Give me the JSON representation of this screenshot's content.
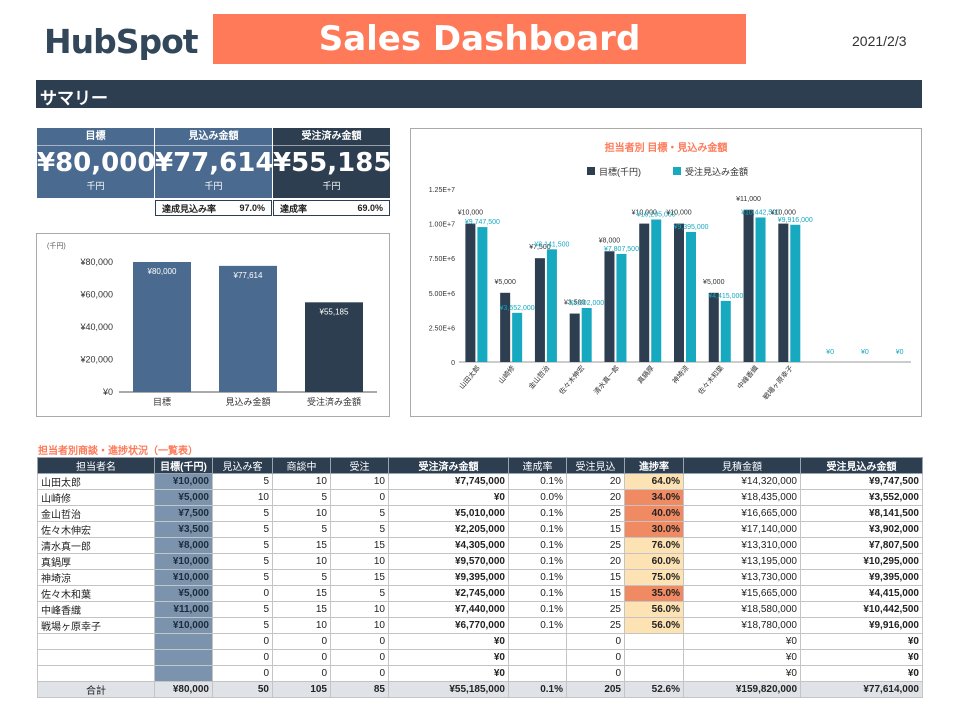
{
  "header": {
    "logo_text": "HubSpot",
    "title": "Sales Dashboard",
    "date": "2021/2/3"
  },
  "section": {
    "title": "サマリー"
  },
  "kpis": [
    {
      "label": "目標",
      "value": "¥80,000",
      "unit": "千円",
      "color": "#4a6a8f"
    },
    {
      "label": "見込み金額",
      "value": "¥77,614",
      "unit": "千円",
      "color": "#4a6a8f"
    },
    {
      "label": "受注済み金額",
      "value": "¥55,185",
      "unit": "千円",
      "color": "#2d3e50"
    }
  ],
  "kpi_sub": [
    {
      "label": "達成見込み率",
      "value": "97.0%"
    },
    {
      "label": "達成率",
      "value": "69.0%"
    }
  ],
  "colors": {
    "navy": "#2d3e50",
    "steel": "#4a6a8f",
    "teal": "#17a9c0",
    "orange": "#ff7a59",
    "progress_red": "#f08a62",
    "progress_light": "#fde2b3"
  },
  "chart_data": [
    {
      "type": "bar",
      "unit_label": "(千円)",
      "categories": [
        "目標",
        "見込み金額",
        "受注済み金額"
      ],
      "values": [
        80000,
        77614,
        55185
      ],
      "data_labels": [
        "¥80,000",
        "¥77,614",
        "¥55,185"
      ],
      "bar_colors": [
        "#4a6a8f",
        "#4a6a8f",
        "#2d3e50"
      ],
      "ylim": [
        0,
        80000
      ],
      "yticks": [
        0,
        20000,
        40000,
        60000,
        80000
      ],
      "ytick_labels": [
        "¥0",
        "¥20,000",
        "¥40,000",
        "¥60,000",
        "¥80,000"
      ],
      "grid": false
    },
    {
      "type": "bar",
      "title": "担当者別 目標・見込み金額",
      "legend_position": "top",
      "categories": [
        "山田太郎",
        "山崎修",
        "金山哲治",
        "佐々木伸宏",
        "清水真一郎",
        "真鍋厚",
        "神埼涼",
        "佐々木和葉",
        "中峰香織",
        "戦場ヶ原幸子",
        "",
        "",
        ""
      ],
      "series": [
        {
          "name": "目標(千円)",
          "color": "#2d3e50",
          "values": [
            10000000,
            5000000,
            7500000,
            3500000,
            8000000,
            10000000,
            10000000,
            5000000,
            11000000,
            10000000,
            0,
            0,
            0
          ],
          "labels": [
            "¥10,000",
            "¥5,000",
            "¥7,500",
            "¥3,500",
            "¥8,000",
            "¥10,000",
            "¥10,000",
            "¥5,000",
            "¥11,000",
            "¥10,000",
            "",
            "",
            ""
          ]
        },
        {
          "name": "受注見込み金額",
          "color": "#17a9c0",
          "values": [
            9747500,
            3552000,
            8141500,
            3902000,
            7807500,
            10295000,
            9395000,
            4415000,
            10442500,
            9916000,
            0,
            0,
            0
          ],
          "labels": [
            "¥9,747,500",
            "¥3,552,000",
            "¥8,141,500",
            "¥3,902,000",
            "¥7,807,500",
            "¥10,295,000",
            "¥9,395,000",
            "¥4,415,000",
            "¥10,442,500",
            "¥9,916,000",
            "¥0",
            "¥0",
            "¥0"
          ]
        }
      ],
      "ylim": [
        0,
        12500000
      ],
      "yticks": [
        0,
        2500000,
        5000000,
        7500000,
        10000000,
        12500000
      ],
      "ytick_labels": [
        "0",
        "2.50E+6",
        "5.00E+6",
        "7.50E+6",
        "1.00E+7",
        "1.25E+7"
      ],
      "grid": false
    }
  ],
  "table": {
    "title": "担当者別商談・進捗状況（一覧表）",
    "headers": [
      "担当者名",
      "目標(千円)",
      "見込み客",
      "商談中",
      "受注",
      "受注済み金額",
      "達成率",
      "受注見込",
      "進捗率",
      "見積金額",
      "受注見込み金額"
    ],
    "rows": [
      [
        "山田太郎",
        "¥10,000",
        "5",
        "10",
        "10",
        "¥7,745,000",
        "0.1%",
        "20",
        "64.0%",
        "¥14,320,000",
        "¥9,747,500"
      ],
      [
        "山崎修",
        "¥5,000",
        "10",
        "5",
        "0",
        "¥0",
        "0.0%",
        "20",
        "34.0%",
        "¥18,435,000",
        "¥3,552,000"
      ],
      [
        "金山哲治",
        "¥7,500",
        "5",
        "10",
        "5",
        "¥5,010,000",
        "0.1%",
        "25",
        "40.0%",
        "¥16,665,000",
        "¥8,141,500"
      ],
      [
        "佐々木伸宏",
        "¥3,500",
        "5",
        "5",
        "5",
        "¥2,205,000",
        "0.1%",
        "15",
        "30.0%",
        "¥17,140,000",
        "¥3,902,000"
      ],
      [
        "清水真一郎",
        "¥8,000",
        "5",
        "15",
        "15",
        "¥4,305,000",
        "0.1%",
        "25",
        "76.0%",
        "¥13,310,000",
        "¥7,807,500"
      ],
      [
        "真鍋厚",
        "¥10,000",
        "5",
        "10",
        "10",
        "¥9,570,000",
        "0.1%",
        "20",
        "60.0%",
        "¥13,195,000",
        "¥10,295,000"
      ],
      [
        "神埼涼",
        "¥10,000",
        "5",
        "5",
        "15",
        "¥9,395,000",
        "0.1%",
        "15",
        "75.0%",
        "¥13,730,000",
        "¥9,395,000"
      ],
      [
        "佐々木和葉",
        "¥5,000",
        "0",
        "15",
        "5",
        "¥2,745,000",
        "0.1%",
        "15",
        "35.0%",
        "¥15,665,000",
        "¥4,415,000"
      ],
      [
        "中峰香織",
        "¥11,000",
        "5",
        "15",
        "10",
        "¥7,440,000",
        "0.1%",
        "25",
        "56.0%",
        "¥18,580,000",
        "¥10,442,500"
      ],
      [
        "戦場ヶ原幸子",
        "¥10,000",
        "5",
        "10",
        "10",
        "¥6,770,000",
        "0.1%",
        "25",
        "56.0%",
        "¥18,780,000",
        "¥9,916,000"
      ],
      [
        "",
        "",
        "0",
        "0",
        "0",
        "¥0",
        "",
        "0",
        "",
        "¥0",
        "¥0"
      ],
      [
        "",
        "",
        "0",
        "0",
        "0",
        "¥0",
        "",
        "0",
        "",
        "¥0",
        "¥0"
      ],
      [
        "",
        "",
        "0",
        "0",
        "0",
        "¥0",
        "",
        "0",
        "",
        "¥0",
        "¥0"
      ]
    ],
    "progress_levels": [
      "light",
      "red",
      "red",
      "red",
      "light",
      "light",
      "light",
      "red",
      "light",
      "light",
      "",
      "",
      ""
    ],
    "total": [
      "合計",
      "¥80,000",
      "50",
      "105",
      "85",
      "¥55,185,000",
      "0.1%",
      "205",
      "52.6%",
      "¥159,820,000",
      "¥77,614,000"
    ]
  }
}
